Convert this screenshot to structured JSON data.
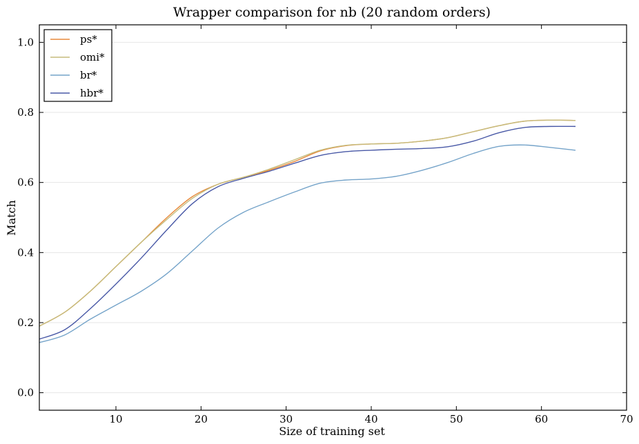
{
  "chart_data": {
    "type": "line",
    "title": "Wrapper comparison for nb (20 random orders)",
    "xlabel": "Size of training set",
    "ylabel": "Match",
    "xlim": [
      1,
      70
    ],
    "ylim": [
      -0.05,
      1.05
    ],
    "xticks": [
      10,
      20,
      30,
      40,
      50,
      60,
      70
    ],
    "yticks": [
      0.0,
      0.2,
      0.4,
      0.6,
      0.8,
      1.0
    ],
    "grid": "horizontal",
    "legend_position": "top-left",
    "x": [
      1,
      4,
      7,
      10,
      13,
      16,
      19,
      22,
      25,
      28,
      31,
      34,
      37,
      40,
      43,
      46,
      49,
      52,
      55,
      58,
      61,
      64
    ],
    "series": [
      {
        "name": "ps*",
        "color": "#e8883a",
        "values": [
          0.19,
          0.23,
          0.29,
          0.36,
          0.43,
          0.5,
          0.56,
          0.595,
          0.615,
          0.635,
          0.66,
          0.69,
          0.705,
          0.71,
          0.712,
          0.718,
          0.728,
          0.745,
          0.762,
          0.775,
          0.778,
          0.777
        ]
      },
      {
        "name": "omi*",
        "color": "#c5bc7c",
        "values": [
          0.19,
          0.23,
          0.29,
          0.36,
          0.43,
          0.495,
          0.555,
          0.595,
          0.615,
          0.638,
          0.665,
          0.692,
          0.706,
          0.71,
          0.712,
          0.718,
          0.728,
          0.745,
          0.762,
          0.775,
          0.778,
          0.777
        ]
      },
      {
        "name": "br*",
        "color": "#74a3c9",
        "values": [
          0.143,
          0.165,
          0.21,
          0.25,
          0.29,
          0.34,
          0.405,
          0.47,
          0.515,
          0.545,
          0.573,
          0.598,
          0.607,
          0.61,
          0.618,
          0.635,
          0.657,
          0.683,
          0.703,
          0.707,
          0.7,
          0.692
        ]
      },
      {
        "name": "hbr*",
        "color": "#4858a6",
        "values": [
          0.153,
          0.18,
          0.24,
          0.31,
          0.385,
          0.465,
          0.54,
          0.588,
          0.612,
          0.632,
          0.655,
          0.677,
          0.688,
          0.692,
          0.695,
          0.697,
          0.702,
          0.718,
          0.742,
          0.757,
          0.76,
          0.76
        ]
      }
    ]
  }
}
